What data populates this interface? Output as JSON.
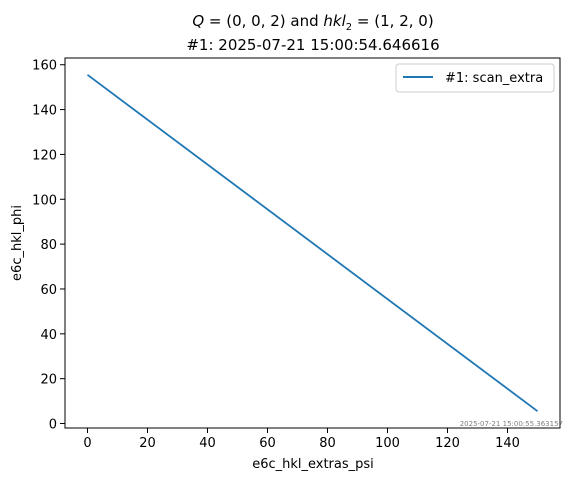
{
  "chart_data": {
    "type": "line",
    "title_line1_parts": [
      "Q",
      " = (0, 0, 2) and ",
      "hkl",
      "2",
      " = (1, 2, 0)"
    ],
    "title_line2": "#1: 2025-07-21 15:00:54.646616",
    "xlabel": "e6c_hkl_extras_psi",
    "ylabel": "e6c_hkl_phi",
    "xlim": [
      -7.5,
      157.5
    ],
    "ylim": [
      -2,
      163
    ],
    "xticks": [
      0,
      20,
      40,
      60,
      80,
      100,
      120,
      140
    ],
    "yticks": [
      0,
      20,
      40,
      60,
      80,
      100,
      120,
      140,
      160
    ],
    "grid": false,
    "legend_position": "top-right",
    "series": [
      {
        "name": "#1: scan_extra",
        "color": "#1f77b4",
        "x": [
          0,
          150
        ],
        "y": [
          155.5,
          5.5
        ]
      }
    ],
    "timestamp_annotation": "2025-07-21 15:00:55.363157"
  }
}
